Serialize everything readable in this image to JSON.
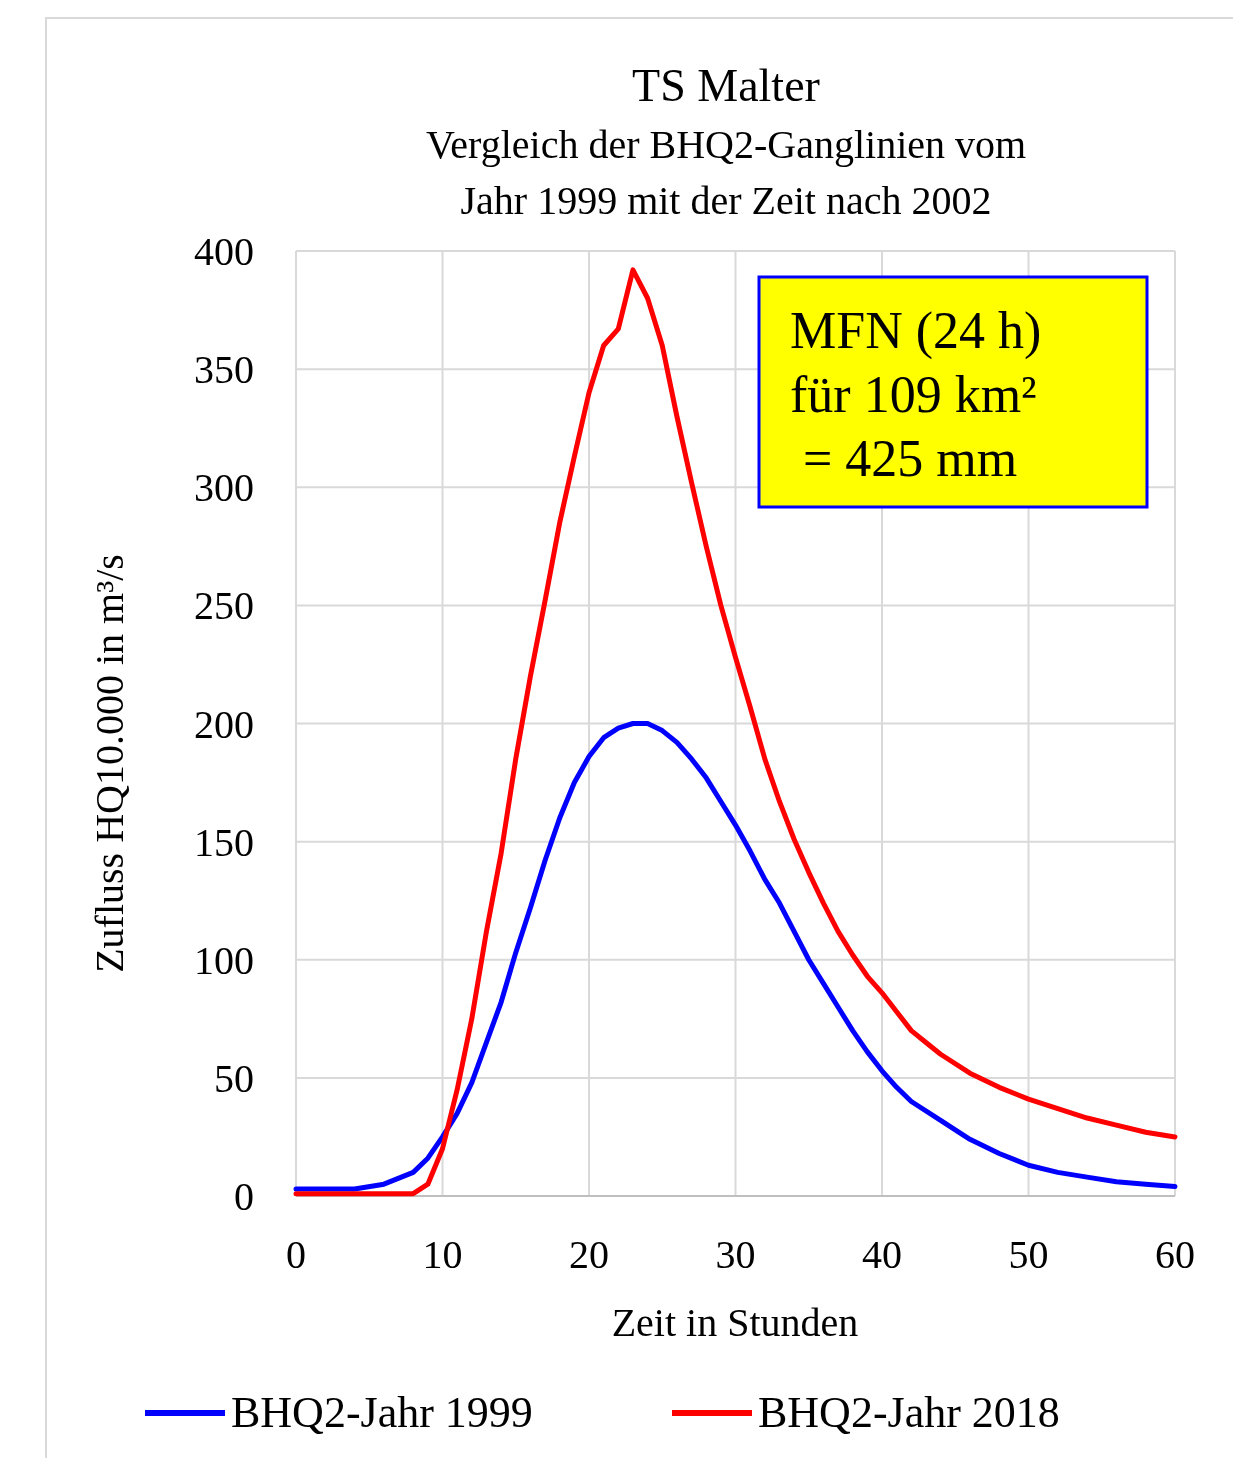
{
  "chart_data": {
    "type": "line",
    "title": "TS Malter",
    "subtitle": "Vergleich der BHQ2-Ganglinien vom\nJahr 1999 mit der Zeit nach 2002",
    "xlabel": "Zeit in Stunden",
    "ylabel": "Zufluss HQ10.000 in m³/s",
    "xlim": [
      0,
      60
    ],
    "xticks": [
      0,
      10,
      20,
      30,
      40,
      50,
      60
    ],
    "ylim": [
      0,
      400
    ],
    "yticks": [
      0,
      50,
      100,
      150,
      200,
      250,
      300,
      350,
      400
    ],
    "grid": true,
    "legend": "bottom",
    "annotations": [
      "MFN (24 h)\nfür 109 km²\n = 425 mm"
    ],
    "series": [
      {
        "name": "BHQ2-Jahr 1999",
        "color": "#0000ff",
        "x": [
          0,
          2,
          4,
          6,
          8,
          9,
          10,
          11,
          12,
          13,
          14,
          15,
          16,
          17,
          18,
          19,
          20,
          21,
          22,
          23,
          24,
          25,
          26,
          27,
          28,
          29,
          30,
          31,
          32,
          33,
          34,
          35,
          36,
          37,
          38,
          39,
          40,
          41,
          42,
          44,
          46,
          48,
          50,
          52,
          54,
          56,
          58,
          60
        ],
        "values": [
          3,
          3,
          3,
          5,
          10,
          16,
          25,
          35,
          48,
          65,
          82,
          103,
          122,
          142,
          160,
          175,
          186,
          194,
          198,
          200,
          200,
          197,
          192,
          185,
          177,
          167,
          157,
          146,
          134,
          124,
          112,
          100,
          90,
          80,
          70,
          61,
          53,
          46,
          40,
          32,
          24,
          18,
          13,
          10,
          8,
          6,
          5,
          4
        ]
      },
      {
        "name": "BHQ2-Jahr 2018",
        "color": "#ff0000",
        "x": [
          0,
          8,
          9,
          10,
          11,
          12,
          13,
          14,
          15,
          16,
          17,
          18,
          19,
          20,
          21,
          22,
          23,
          24,
          25,
          26,
          27,
          28,
          29,
          30,
          31,
          32,
          33,
          34,
          35,
          36,
          37,
          38,
          39,
          40,
          41,
          42,
          43,
          44,
          46,
          48,
          50,
          52,
          54,
          56,
          58,
          60
        ],
        "values": [
          1,
          1,
          5,
          20,
          45,
          75,
          112,
          145,
          185,
          220,
          252,
          285,
          313,
          340,
          360,
          367,
          392,
          380,
          360,
          330,
          302,
          275,
          250,
          228,
          207,
          185,
          167,
          151,
          137,
          124,
          112,
          102,
          93,
          86,
          78,
          70,
          65,
          60,
          52,
          46,
          41,
          37,
          33,
          30,
          27,
          25
        ]
      }
    ]
  }
}
